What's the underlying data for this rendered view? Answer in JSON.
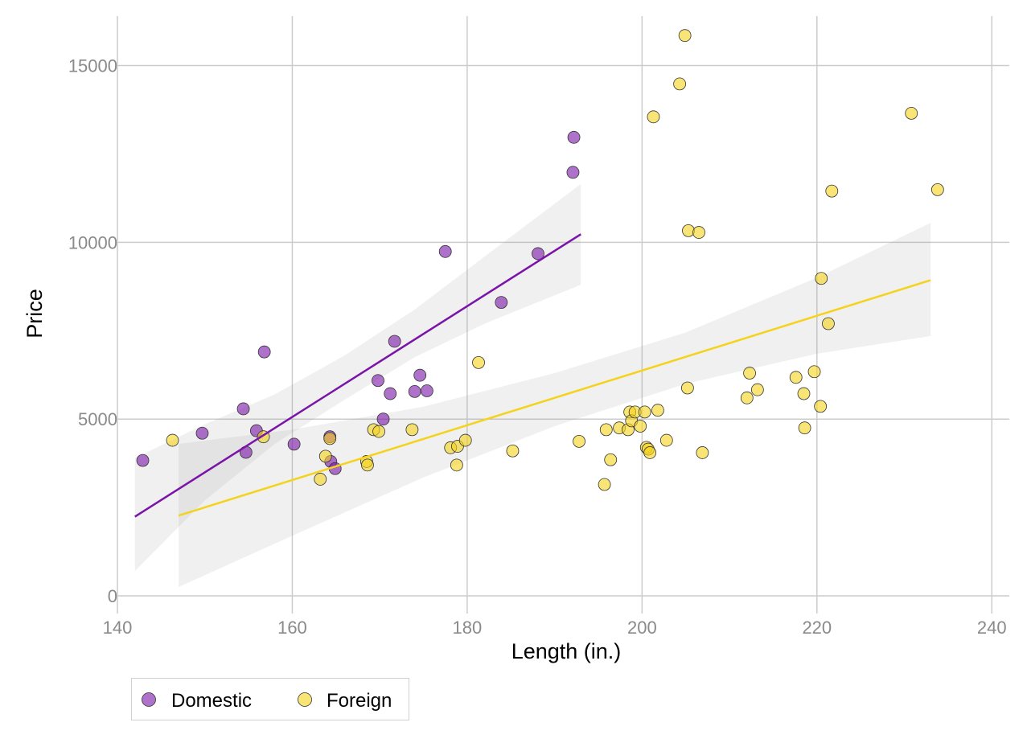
{
  "chart_data": {
    "type": "scatter",
    "xlabel": "Length (in.)",
    "ylabel": "Price",
    "xlim": [
      140,
      242
    ],
    "ylim": [
      -500,
      16400
    ],
    "x_ticks": [
      140,
      160,
      180,
      200,
      220,
      240
    ],
    "y_ticks": [
      0,
      5000,
      10000,
      15000
    ],
    "x_tick_labels": [
      "140",
      "160",
      "180",
      "200",
      "220",
      "240"
    ],
    "y_tick_labels": [
      "0",
      "5000",
      "10000",
      "15000"
    ],
    "grid": true,
    "legend_position": "bottom-left",
    "series": [
      {
        "name": "Domestic",
        "color": "#7a14a8",
        "points": [
          [
            142.9,
            3830
          ],
          [
            149.7,
            4600
          ],
          [
            154.4,
            5290
          ],
          [
            154.7,
            4060
          ],
          [
            155.9,
            4670
          ],
          [
            156.8,
            6900
          ],
          [
            160.2,
            4290
          ],
          [
            164.3,
            4500
          ],
          [
            164.4,
            3800
          ],
          [
            164.9,
            3600
          ],
          [
            169.8,
            6090
          ],
          [
            170.4,
            5000
          ],
          [
            171.2,
            5720
          ],
          [
            171.7,
            7200
          ],
          [
            174.0,
            5780
          ],
          [
            174.6,
            6240
          ],
          [
            175.4,
            5800
          ],
          [
            177.5,
            9740
          ],
          [
            183.9,
            8300
          ],
          [
            188.1,
            9680
          ],
          [
            192.1,
            11980
          ],
          [
            192.2,
            12970
          ]
        ],
        "fit": {
          "x": [
            142.0,
            193.0
          ],
          "y": [
            2240,
            10230
          ]
        },
        "band": {
          "x": [
            142.0,
            150.0,
            158.0,
            166.0,
            174.0,
            182.0,
            193.0
          ],
          "lower": [
            700,
            2700,
            4300,
            5550,
            6750,
            7700,
            8800
          ],
          "upper": [
            3900,
            4850,
            5700,
            6800,
            8100,
            9600,
            11650
          ]
        }
      },
      {
        "name": "Foreign",
        "color": "#f5d21b",
        "points": [
          [
            146.3,
            4400
          ],
          [
            156.7,
            4500
          ],
          [
            163.2,
            3300
          ],
          [
            163.8,
            3950
          ],
          [
            164.3,
            4450
          ],
          [
            168.5,
            3800
          ],
          [
            168.6,
            3700
          ],
          [
            169.3,
            4700
          ],
          [
            169.9,
            4650
          ],
          [
            173.7,
            4700
          ],
          [
            178.1,
            4190
          ],
          [
            178.8,
            3700
          ],
          [
            178.9,
            4230
          ],
          [
            179.8,
            4400
          ],
          [
            181.3,
            6600
          ],
          [
            185.2,
            4100
          ],
          [
            192.8,
            4370
          ],
          [
            195.7,
            3150
          ],
          [
            195.9,
            4700
          ],
          [
            196.4,
            3850
          ],
          [
            197.4,
            4750
          ],
          [
            198.4,
            4700
          ],
          [
            198.6,
            5200
          ],
          [
            198.8,
            4950
          ],
          [
            199.2,
            5200
          ],
          [
            199.8,
            4800
          ],
          [
            200.3,
            5200
          ],
          [
            200.5,
            4200
          ],
          [
            200.7,
            4150
          ],
          [
            200.9,
            4050
          ],
          [
            201.3,
            13550
          ],
          [
            201.8,
            5250
          ],
          [
            202.8,
            4400
          ],
          [
            204.3,
            14480
          ],
          [
            204.9,
            15850
          ],
          [
            205.2,
            5880
          ],
          [
            205.3,
            10330
          ],
          [
            206.5,
            10280
          ],
          [
            206.9,
            4050
          ],
          [
            212.0,
            5600
          ],
          [
            212.3,
            6300
          ],
          [
            213.2,
            5830
          ],
          [
            217.6,
            6180
          ],
          [
            218.5,
            5720
          ],
          [
            218.6,
            4750
          ],
          [
            219.7,
            6340
          ],
          [
            220.4,
            5360
          ],
          [
            220.5,
            8980
          ],
          [
            221.3,
            7700
          ],
          [
            221.7,
            11450
          ],
          [
            230.8,
            13650
          ],
          [
            233.8,
            11490
          ]
        ],
        "fit": {
          "x": [
            147.0,
            233.0
          ],
          "y": [
            2270,
            8930
          ]
        },
        "band": {
          "x": [
            147.0,
            160.0,
            175.0,
            190.0,
            205.0,
            220.0,
            233.0
          ],
          "lower": [
            250,
            1700,
            3350,
            4800,
            6000,
            6850,
            7350
          ],
          "upper": [
            4300,
            4700,
            5350,
            6300,
            7450,
            9000,
            10550
          ]
        }
      }
    ]
  }
}
